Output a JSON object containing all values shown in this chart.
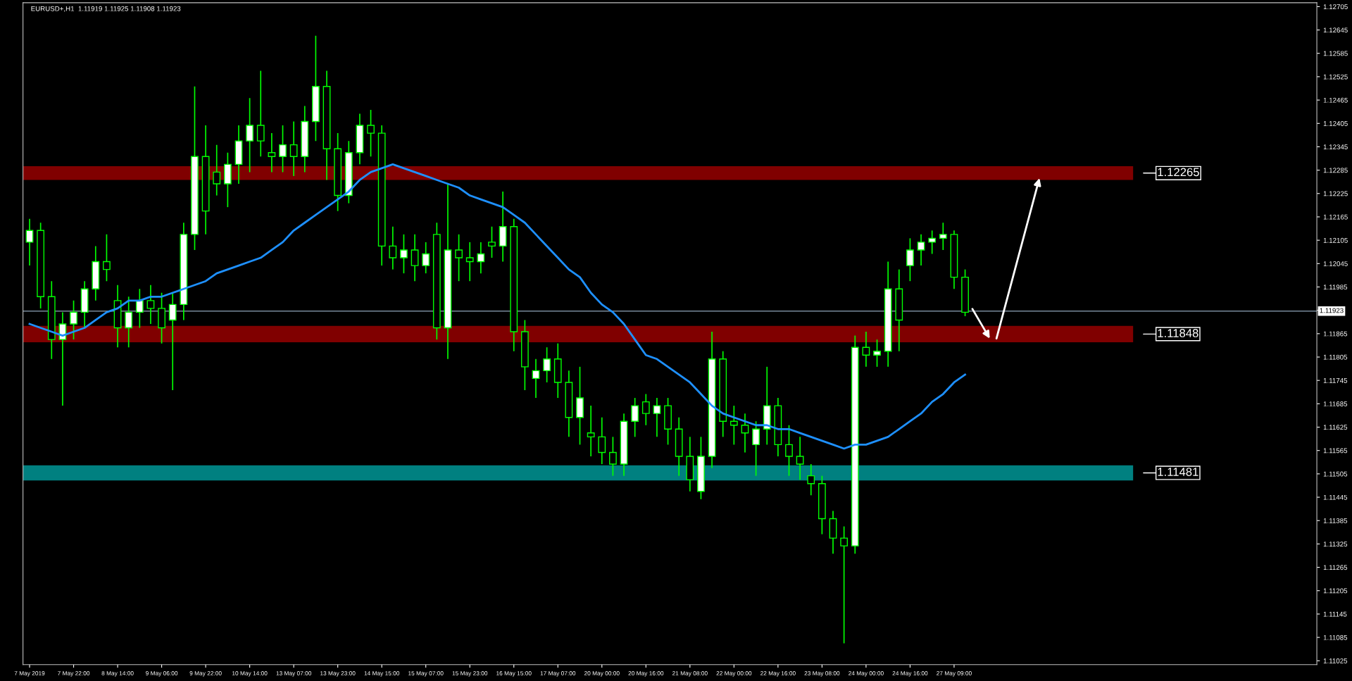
{
  "chart_data": {
    "type": "candlestick",
    "title": "EURUSD+,H1  1.11919 1.11925 1.11908 1.11923",
    "color": "#00ff00",
    "categories": [
      "7 May 2019",
      null,
      null,
      null,
      "7 May 22:00",
      null,
      null,
      null,
      "8 May 14:00",
      null,
      null,
      null,
      "9 May 06:00",
      null,
      null,
      null,
      "9 May 22:00",
      null,
      null,
      null,
      "10 May 14:00",
      null,
      null,
      null,
      "13 May 07:00",
      null,
      null,
      null,
      "13 May 23:00",
      null,
      null,
      null,
      "14 May 15:00",
      null,
      null,
      null,
      "15 May 07:00",
      null,
      null,
      null,
      "15 May 23:00",
      null,
      null,
      null,
      "16 May 15:00",
      null,
      null,
      null,
      "17 May 07:00",
      null,
      null,
      null,
      "20 May 00:00",
      null,
      null,
      null,
      "20 May 16:00",
      null,
      null,
      null,
      "21 May 08:00",
      null,
      null,
      null,
      "22 May 00:00",
      null,
      null,
      null,
      "22 May 16:00",
      null,
      null,
      null,
      "23 May 08:00",
      null,
      null,
      null,
      "24 May 00:00",
      null,
      null,
      null,
      "24 May 16:00",
      null,
      null,
      null,
      "27 May 09:00",
      null
    ],
    "ohlc": [
      [
        1.121,
        1.1216,
        1.1204,
        1.1213
      ],
      [
        1.1213,
        1.1215,
        1.1193,
        1.1196
      ],
      [
        1.1196,
        1.12,
        1.118,
        1.1185
      ],
      [
        1.1185,
        1.1192,
        1.1168,
        1.1189
      ],
      [
        1.1189,
        1.1195,
        1.1185,
        1.1192
      ],
      [
        1.1192,
        1.12,
        1.1188,
        1.1198
      ],
      [
        1.1198,
        1.1209,
        1.1195,
        1.1205
      ],
      [
        1.1205,
        1.1212,
        1.12,
        1.1203
      ],
      [
        1.1195,
        1.1199,
        1.1183,
        1.1188
      ],
      [
        1.1188,
        1.1196,
        1.1183,
        1.1192
      ],
      [
        1.1192,
        1.1198,
        1.1188,
        1.1195
      ],
      [
        1.1195,
        1.1199,
        1.1189,
        1.1193
      ],
      [
        1.1193,
        1.1197,
        1.1184,
        1.1188
      ],
      [
        1.119,
        1.1197,
        1.1172,
        1.1194
      ],
      [
        1.1194,
        1.1215,
        1.119,
        1.1212
      ],
      [
        1.1212,
        1.125,
        1.1208,
        1.1232
      ],
      [
        1.1232,
        1.124,
        1.1212,
        1.1218
      ],
      [
        1.1228,
        1.1235,
        1.1222,
        1.1225
      ],
      [
        1.1225,
        1.1233,
        1.1219,
        1.123
      ],
      [
        1.123,
        1.124,
        1.1225,
        1.1236
      ],
      [
        1.1236,
        1.1247,
        1.1228,
        1.124
      ],
      [
        1.124,
        1.1254,
        1.1232,
        1.1236
      ],
      [
        1.1233,
        1.1238,
        1.1228,
        1.1232
      ],
      [
        1.1232,
        1.124,
        1.1228,
        1.1235
      ],
      [
        1.1235,
        1.1241,
        1.1227,
        1.1232
      ],
      [
        1.1232,
        1.1245,
        1.1228,
        1.1241
      ],
      [
        1.1241,
        1.1263,
        1.1236,
        1.125
      ],
      [
        1.125,
        1.1254,
        1.1226,
        1.1234
      ],
      [
        1.1234,
        1.1238,
        1.1218,
        1.1222
      ],
      [
        1.1222,
        1.1236,
        1.122,
        1.1233
      ],
      [
        1.1233,
        1.1243,
        1.123,
        1.124
      ],
      [
        1.124,
        1.1244,
        1.1232,
        1.1238
      ],
      [
        1.1238,
        1.124,
        1.1204,
        1.1209
      ],
      [
        1.1209,
        1.1214,
        1.1203,
        1.1206
      ],
      [
        1.1206,
        1.1212,
        1.1202,
        1.1208
      ],
      [
        1.1208,
        1.1212,
        1.12,
        1.1204
      ],
      [
        1.1204,
        1.121,
        1.1202,
        1.1207
      ],
      [
        1.1212,
        1.1215,
        1.1185,
        1.1188
      ],
      [
        1.1188,
        1.1225,
        1.118,
        1.1208
      ],
      [
        1.1208,
        1.1212,
        1.12,
        1.1206
      ],
      [
        1.1206,
        1.121,
        1.12,
        1.1205
      ],
      [
        1.1205,
        1.121,
        1.1202,
        1.1207
      ],
      [
        1.121,
        1.1214,
        1.1206,
        1.1209
      ],
      [
        1.1209,
        1.1223,
        1.1205,
        1.1214
      ],
      [
        1.1214,
        1.1216,
        1.1182,
        1.1187
      ],
      [
        1.1187,
        1.119,
        1.1172,
        1.1178
      ],
      [
        1.1175,
        1.118,
        1.117,
        1.1177
      ],
      [
        1.1177,
        1.1183,
        1.1174,
        1.118
      ],
      [
        1.118,
        1.1184,
        1.117,
        1.1174
      ],
      [
        1.1174,
        1.1177,
        1.116,
        1.1165
      ],
      [
        1.1165,
        1.1178,
        1.1158,
        1.117
      ],
      [
        1.1161,
        1.1168,
        1.1155,
        1.116
      ],
      [
        1.116,
        1.1165,
        1.1153,
        1.1156
      ],
      [
        1.1156,
        1.116,
        1.115,
        1.1153
      ],
      [
        1.1153,
        1.1166,
        1.115,
        1.1164
      ],
      [
        1.1164,
        1.117,
        1.116,
        1.1168
      ],
      [
        1.1169,
        1.1171,
        1.1163,
        1.1166
      ],
      [
        1.1166,
        1.117,
        1.116,
        1.1168
      ],
      [
        1.1168,
        1.117,
        1.1158,
        1.1162
      ],
      [
        1.1162,
        1.1165,
        1.115,
        1.1155
      ],
      [
        1.1155,
        1.116,
        1.1146,
        1.1149
      ],
      [
        1.1146,
        1.116,
        1.1144,
        1.1155
      ],
      [
        1.1155,
        1.1187,
        1.1152,
        1.118
      ],
      [
        1.118,
        1.1182,
        1.116,
        1.1164
      ],
      [
        1.1164,
        1.1168,
        1.1158,
        1.1163
      ],
      [
        1.1163,
        1.1166,
        1.1156,
        1.1161
      ],
      [
        1.1158,
        1.1164,
        1.115,
        1.1162
      ],
      [
        1.1162,
        1.1178,
        1.1158,
        1.1168
      ],
      [
        1.1168,
        1.117,
        1.1155,
        1.1158
      ],
      [
        1.1158,
        1.1163,
        1.115,
        1.1155
      ],
      [
        1.1155,
        1.116,
        1.1149,
        1.1153
      ],
      [
        1.115,
        1.1153,
        1.1145,
        1.1148
      ],
      [
        1.1148,
        1.115,
        1.1135,
        1.1139
      ],
      [
        1.1139,
        1.1141,
        1.113,
        1.1134
      ],
      [
        1.1134,
        1.1137,
        1.1107,
        1.1132
      ],
      [
        1.1132,
        1.1186,
        1.113,
        1.1183
      ],
      [
        1.1183,
        1.1187,
        1.1178,
        1.1181
      ],
      [
        1.1181,
        1.1185,
        1.1178,
        1.1182
      ],
      [
        1.1182,
        1.1205,
        1.1178,
        1.1198
      ],
      [
        1.1198,
        1.1203,
        1.1182,
        1.119
      ],
      [
        1.1204,
        1.1211,
        1.12,
        1.1208
      ],
      [
        1.1208,
        1.1212,
        1.1204,
        1.121
      ],
      [
        1.121,
        1.1213,
        1.1207,
        1.1211
      ],
      [
        1.1211,
        1.1215,
        1.1208,
        1.1212
      ],
      [
        1.1212,
        1.1213,
        1.1198,
        1.1201
      ],
      [
        1.1201,
        1.1203,
        1.1191,
        1.1192
      ]
    ],
    "series": [
      {
        "type": "line",
        "color": "#1e90ff",
        "values": [
          1.1189,
          1.1188,
          1.1187,
          1.1186,
          1.1187,
          1.1188,
          1.119,
          1.1192,
          1.1193,
          1.1195,
          1.1195,
          1.1196,
          1.1196,
          1.1197,
          1.1198,
          1.1199,
          1.12,
          1.1202,
          1.1203,
          1.1204,
          1.1205,
          1.1206,
          1.1208,
          1.121,
          1.1213,
          1.1215,
          1.1217,
          1.1219,
          1.1221,
          1.1223,
          1.1226,
          1.1228,
          1.1229,
          1.123,
          1.1229,
          1.1228,
          1.1227,
          1.1226,
          1.1225,
          1.1224,
          1.1222,
          1.1221,
          1.122,
          1.1219,
          1.1217,
          1.1215,
          1.1212,
          1.1209,
          1.1206,
          1.1203,
          1.1201,
          1.1197,
          1.1194,
          1.1192,
          1.1189,
          1.1185,
          1.1181,
          1.118,
          1.1178,
          1.1176,
          1.1174,
          1.1171,
          1.1168,
          1.1166,
          1.1165,
          1.1164,
          1.1163,
          1.1163,
          1.1162,
          1.1162,
          1.1161,
          1.116,
          1.1159,
          1.1158,
          1.1157,
          1.1158,
          1.1158,
          1.1159,
          1.116,
          1.1162,
          1.1164,
          1.1166,
          1.1169,
          1.1171,
          1.1174,
          1.1176
        ]
      }
    ],
    "ylim": [
      1.11015,
      1.12715
    ],
    "yticks": [
      1.11025,
      1.11085,
      1.11145,
      1.11205,
      1.11265,
      1.11325,
      1.11385,
      1.11445,
      1.11505,
      1.11565,
      1.11625,
      1.11685,
      1.11745,
      1.11805,
      1.11865,
      {
        "value": 1.11925,
        "label": null
      },
      1.11985,
      1.12045,
      1.12105,
      1.12165,
      1.12225,
      1.12285,
      1.12345,
      1.12405,
      1.12465,
      1.12525,
      1.12585,
      1.12645,
      1.12705
    ],
    "bands": [
      {
        "axis": "y",
        "from": 1.1226,
        "to": 1.12295,
        "label": "1.12265",
        "color": "#800000"
      },
      {
        "axis": "y",
        "from": 1.11843,
        "to": 1.11885,
        "label": "1.11848",
        "color": "#800000"
      },
      {
        "axis": "y",
        "from": 1.11488,
        "to": 1.11527,
        "label": "1.11481",
        "color": "#008080"
      }
    ],
    "ref_lines": [
      {
        "axis": "y",
        "value": 1.11923,
        "label": "1.11923",
        "color": "#778899"
      }
    ],
    "grid": false,
    "legend": false
  }
}
